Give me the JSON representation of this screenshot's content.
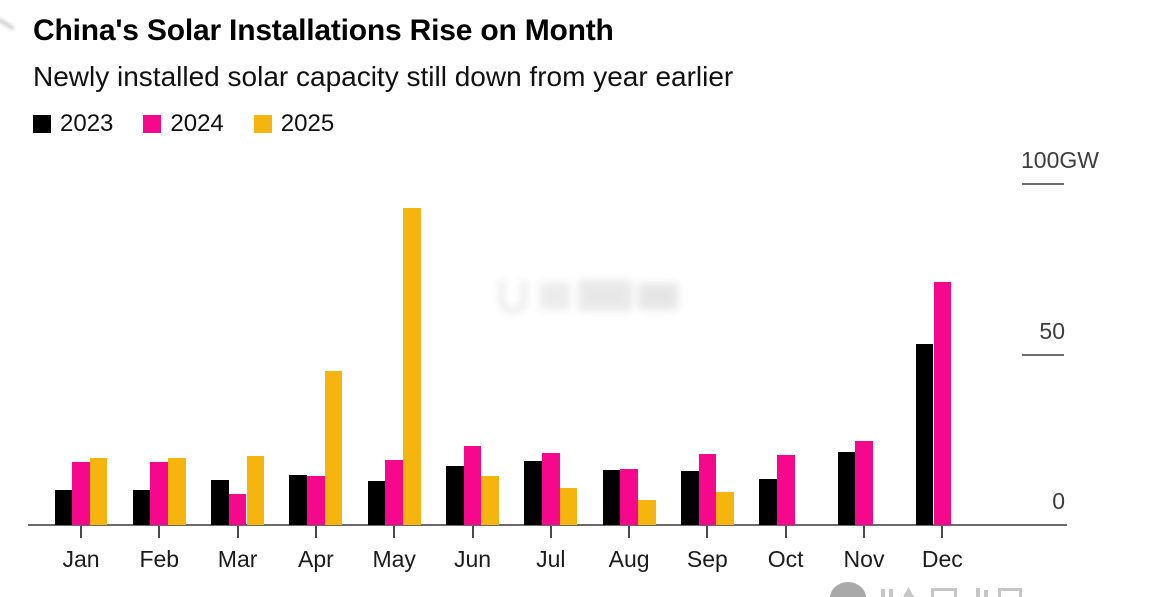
{
  "chart_data": {
    "type": "bar",
    "title": "China's Solar Installations Rise on Month",
    "subtitle": "Newly installed solar capacity still down from year earlier",
    "unit": "GW",
    "categories": [
      "Jan",
      "Feb",
      "Mar",
      "Apr",
      "May",
      "Jun",
      "Jul",
      "Aug",
      "Sep",
      "Oct",
      "Nov",
      "Dec"
    ],
    "series": [
      {
        "name": "2023",
        "color": "#000000",
        "values": [
          10.2,
          10.2,
          13.3,
          14.7,
          12.9,
          17.2,
          18.7,
          16.0,
          15.8,
          13.6,
          21.3,
          53.0
        ]
      },
      {
        "name": "2024",
        "color": "#f5088c",
        "values": [
          18.4,
          18.4,
          9.0,
          14.4,
          19.0,
          23.3,
          21.1,
          16.5,
          20.9,
          20.4,
          24.6,
          71.3
        ]
      },
      {
        "name": "2025",
        "color": "#f6b40f",
        "values": [
          19.7,
          19.7,
          20.2,
          45.2,
          92.9,
          14.4,
          10.9,
          7.4,
          9.7,
          null,
          null,
          null
        ]
      }
    ],
    "ylim": [
      0,
      100
    ],
    "yticks": [
      {
        "label": "100GW",
        "value": 100
      },
      {
        "label": "50",
        "value": 50
      },
      {
        "label": "0",
        "value": 0
      }
    ],
    "legend_position": "top-left",
    "grid": false,
    "axis_color": "#6a6a6a"
  }
}
